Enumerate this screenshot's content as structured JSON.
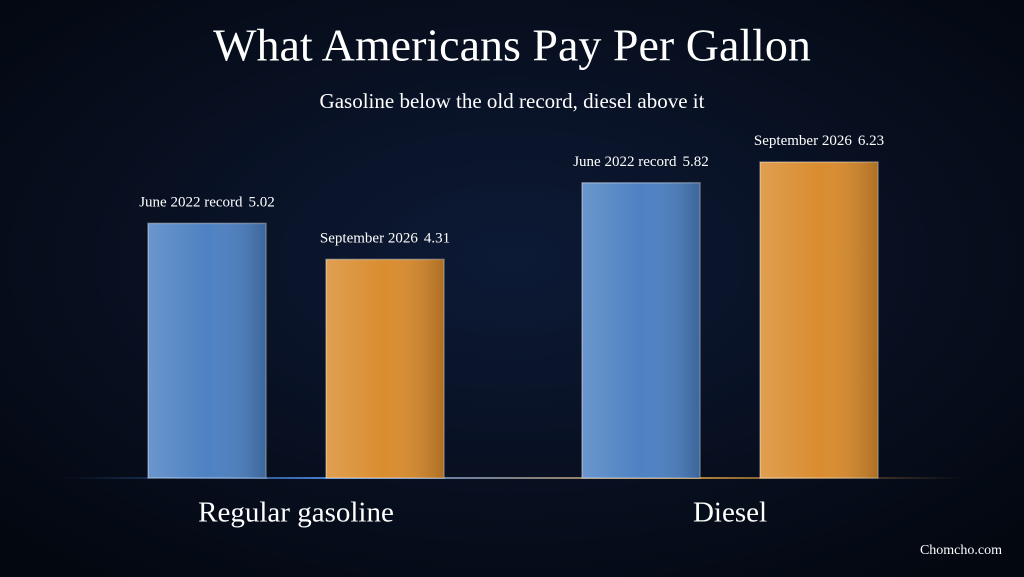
{
  "chart_data": {
    "type": "bar",
    "title": "What Americans Pay Per Gallon",
    "subtitle": "Gasoline below the old record, diesel above it",
    "categories": [
      "Regular gasoline",
      "Diesel"
    ],
    "series": [
      {
        "name": "June 2022 record",
        "color": "#4a7fc1",
        "values": [
          5.02,
          5.82
        ]
      },
      {
        "name": "September 2026",
        "color": "#d98a2b",
        "values": [
          4.31,
          6.23
        ]
      }
    ],
    "source": "Chomcho.com"
  }
}
